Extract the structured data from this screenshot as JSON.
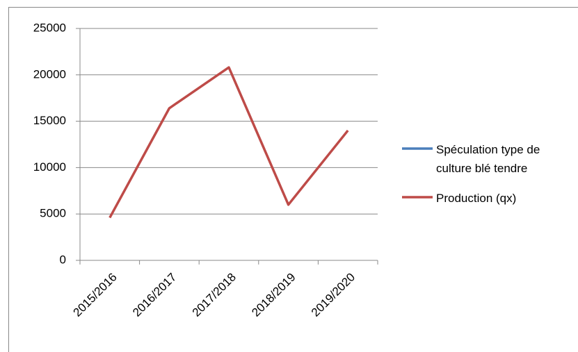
{
  "chart_data": {
    "type": "line",
    "categories": [
      "2015/2016",
      "2016/2017",
      "2017/2018",
      "2018/2019",
      "2019/2020"
    ],
    "series": [
      {
        "name": "Spéculation type de culture blé tendre",
        "color": "#4a7ebb",
        "values": [
          null,
          null,
          null,
          null,
          null
        ]
      },
      {
        "name": "Production (qx)",
        "color": "#be4b48",
        "values": [
          4600,
          16400,
          20800,
          6000,
          14000
        ]
      }
    ],
    "ylim": [
      0,
      25000
    ],
    "yticks": [
      0,
      5000,
      10000,
      15000,
      20000,
      25000
    ],
    "grid": true,
    "legend": "right"
  }
}
